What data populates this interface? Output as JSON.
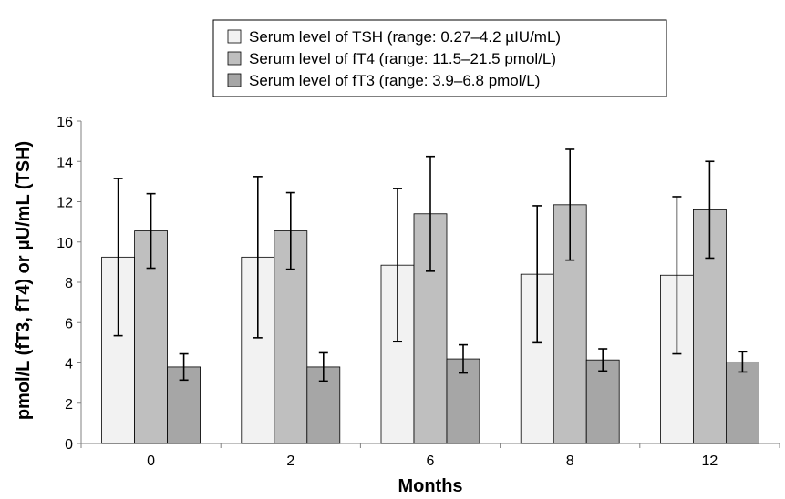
{
  "chart_data": {
    "type": "bar",
    "categories": [
      "0",
      "2",
      "6",
      "8",
      "12"
    ],
    "xlabel": "Months",
    "ylabel": "pmol/L (fT3, fT4) or µU/mL (TSH)",
    "ylim": [
      0,
      16
    ],
    "yticks": [
      0,
      2,
      4,
      6,
      8,
      10,
      12,
      14,
      16
    ],
    "grid": false,
    "legend_position": "top-center",
    "series": [
      {
        "name": "Serum level of TSH (range: 0.27–4.2 µIU/mL)",
        "color": "#f2f2f2",
        "values": [
          9.25,
          9.25,
          8.85,
          8.4,
          8.35
        ],
        "error": [
          3.9,
          4.0,
          3.8,
          3.4,
          3.9
        ]
      },
      {
        "name": "Serum level of fT4 (range: 11.5–21.5 pmol/L)",
        "color": "#bfbfbf",
        "values": [
          10.55,
          10.55,
          11.4,
          11.85,
          11.6
        ],
        "error": [
          1.85,
          1.9,
          2.85,
          2.75,
          2.4
        ]
      },
      {
        "name": "Serum level of fT3 (range: 3.9–6.8 pmol/L)",
        "color": "#a6a6a6",
        "values": [
          3.8,
          3.8,
          4.2,
          4.15,
          4.05
        ],
        "error": [
          0.65,
          0.7,
          0.7,
          0.55,
          0.5
        ]
      }
    ]
  }
}
